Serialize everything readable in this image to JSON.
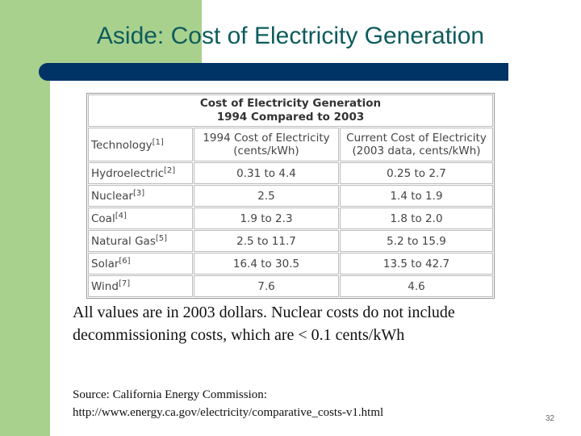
{
  "slide": {
    "title": "Aside: Cost of Electricity Generation",
    "page_number": "32"
  },
  "table": {
    "title": [
      "Cost of Electricity Generation",
      "1994 Compared to 2003"
    ],
    "header": [
      [
        "Technology"
      ],
      [
        "1994 Cost of Electricity",
        "(cents/kWh)"
      ],
      [
        "Current Cost of Electricity",
        "(2003 data, cents/kWh)"
      ]
    ],
    "header_note": "[1]",
    "rows": [
      {
        "technology": "Hydroelectric",
        "note": "[2]",
        "cost_1994": "0.31 to 4.4",
        "cost_2003": "0.25 to 2.7"
      },
      {
        "technology": "Nuclear",
        "note": "[3]",
        "cost_1994": "2.5",
        "cost_2003": "1.4 to 1.9"
      },
      {
        "technology": "Coal",
        "note": "[4]",
        "cost_1994": "1.9 to 2.3",
        "cost_2003": "1.8 to 2.0"
      },
      {
        "technology": "Natural Gas",
        "note": "[5]",
        "cost_1994": "2.5 to 11.7",
        "cost_2003": "5.2 to 15.9"
      },
      {
        "technology": "Solar",
        "note": "[6]",
        "cost_1994": "16.4 to 30.5",
        "cost_2003": "13.5 to 42.7"
      },
      {
        "technology": "Wind",
        "note": "[7]",
        "cost_1994": "7.6",
        "cost_2003": "4.6"
      }
    ]
  },
  "note": [
    "All values are in 2003 dollars.  Nuclear costs do not include",
    "decommissioning costs, which are < 0.1 cents/kWh"
  ],
  "source": [
    "Source: California Energy Commission:",
    "http://www.energy.ca.gov/electricity/comparative_costs-v1.html"
  ]
}
